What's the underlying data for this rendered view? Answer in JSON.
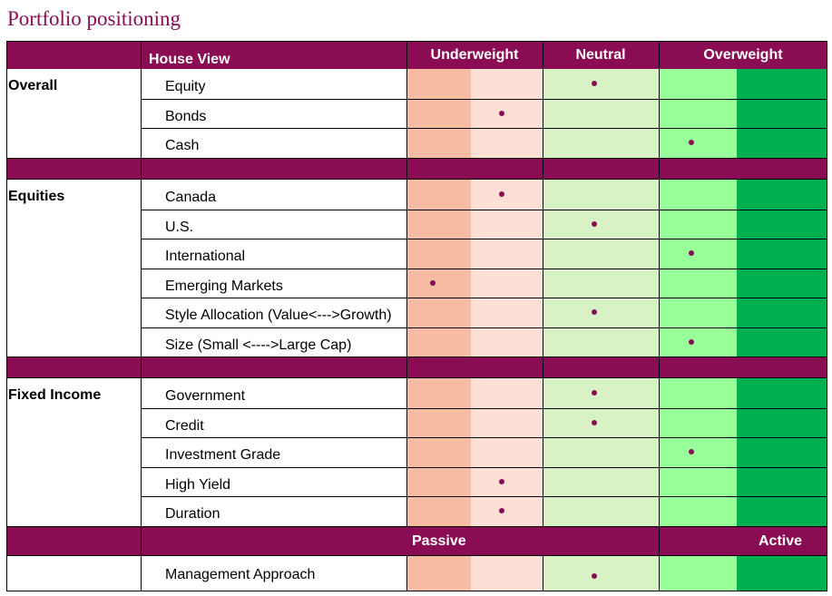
{
  "title": "Portfolio positioning",
  "header": {
    "house_view": "House View",
    "underweight": "Underweight",
    "neutral": "Neutral",
    "overweight": "Overweight"
  },
  "footer_header": {
    "passive": "Passive",
    "active": "Active"
  },
  "scale_positions": 5,
  "colors": {
    "brand": "#8a0c53",
    "uw_strong": "#f8bba4",
    "uw_light": "#fce0d6",
    "neutral": "#d8f1c5",
    "ow_light": "#99ff99",
    "ow_strong": "#00b050",
    "dot": "#8a0c53"
  },
  "sections": [
    {
      "label": "Overall",
      "rows": [
        {
          "label": "Equity",
          "position": 3
        },
        {
          "label": "Bonds",
          "position": 2
        },
        {
          "label": "Cash",
          "position": 4
        }
      ]
    },
    {
      "label": "Equities",
      "rows": [
        {
          "label": "Canada",
          "position": 2
        },
        {
          "label": "U.S.",
          "position": 3
        },
        {
          "label": "International",
          "position": 4
        },
        {
          "label": "Emerging Markets",
          "position": 1
        },
        {
          "label": "Style Allocation (Value<--->Growth)",
          "position": 3
        },
        {
          "label": "Size (Small <---->Large Cap)",
          "position": 4
        }
      ]
    },
    {
      "label": "Fixed Income",
      "rows": [
        {
          "label": "Government",
          "position": 3
        },
        {
          "label": "Credit",
          "position": 3
        },
        {
          "label": "Investment Grade",
          "position": 4
        },
        {
          "label": "High Yield",
          "position": 2
        },
        {
          "label": "Duration",
          "position": 2
        }
      ]
    }
  ],
  "management": {
    "label": "Management Approach",
    "position": 3
  }
}
